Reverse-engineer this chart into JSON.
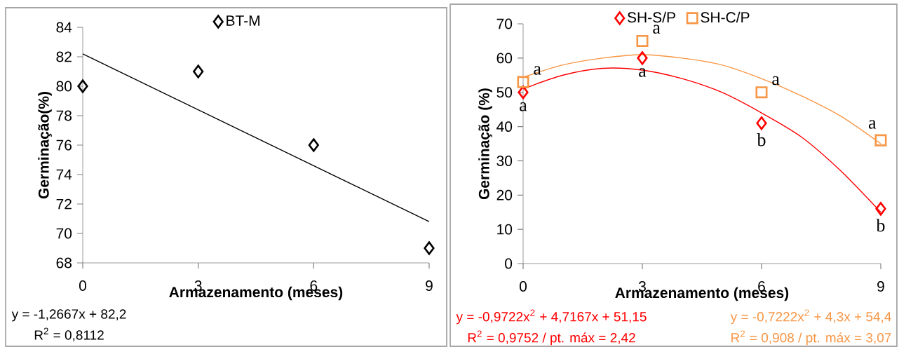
{
  "chart_data": [
    {
      "type": "scatter",
      "xlabel": "Armazenamento (meses)",
      "ylabel": "Germinação(%)",
      "xlim": [
        0,
        9
      ],
      "xticks": [
        0,
        3,
        6,
        9
      ],
      "ylim": [
        68,
        84
      ],
      "yticks": [
        68,
        70,
        72,
        74,
        76,
        78,
        80,
        82,
        84
      ],
      "legend": "top",
      "x": [
        0,
        3,
        6,
        9
      ],
      "series": [
        {
          "name": "BT-M",
          "color": "#000000",
          "marker": "diamond",
          "values": [
            80,
            81,
            76,
            69
          ]
        },
        {
          "type": "line",
          "color": "#000000",
          "marker": "none",
          "x": [
            0,
            9
          ],
          "values": [
            82.2,
            70.8
          ]
        }
      ],
      "annotations": [
        "y = -1,2667x + 82,2",
        "R$^{2}$ = 0,8112"
      ]
    },
    {
      "type": "scatter",
      "xlabel": "Armazenamento (meses)",
      "ylabel": "Germinação (%)",
      "xlim": [
        0,
        9
      ],
      "xticks": [
        0,
        3,
        6,
        9
      ],
      "ylim": [
        0,
        70
      ],
      "yticks": [
        0,
        10,
        20,
        30,
        40,
        50,
        60,
        70
      ],
      "legend": "top",
      "x": [
        0,
        3,
        6,
        9
      ],
      "series": [
        {
          "name": "SH-S/P",
          "color": "#ff0000",
          "marker": "diamond",
          "values": [
            50,
            60,
            41,
            16
          ]
        },
        {
          "name": "SH-C/P",
          "color": "#f79646",
          "marker": "square",
          "values": [
            53,
            65,
            50,
            36
          ]
        },
        {
          "type": "line",
          "color": "#ff0000",
          "marker": "none",
          "x": [
            0,
            1,
            2,
            3,
            4,
            5,
            6,
            7,
            8,
            9
          ],
          "values": [
            51,
            55,
            57,
            56.5,
            54,
            50,
            44,
            37,
            27,
            15
          ]
        },
        {
          "type": "line",
          "color": "#f79646",
          "marker": "none",
          "x": [
            0,
            1,
            2,
            3,
            4,
            5,
            6,
            7,
            8,
            9
          ],
          "values": [
            54.4,
            58,
            60,
            61,
            60,
            58,
            54,
            49,
            43,
            35
          ]
        }
      ],
      "annotations": [
        "y = -0,9722x$^{2}$ + 4,7167x + 51,15",
        "R$^{2}$ = 0,9752 / pt. máx = 2,42",
        "y = -0,7222x$^{2}$ + 4,3x + 54,4",
        "R$^{2}$ = 0,908 / pt. máx = 3,07",
        {
          "text": "a",
          "x": 0,
          "y": 53
        },
        {
          "text": "a",
          "x": 0,
          "y": 50
        },
        {
          "text": "a",
          "x": 3,
          "y": 65
        },
        {
          "text": "a",
          "x": 3,
          "y": 60
        },
        {
          "text": "a",
          "x": 6,
          "y": 50
        },
        {
          "text": "b",
          "x": 6,
          "y": 41
        },
        {
          "text": "a",
          "x": 9,
          "y": 36
        },
        {
          "text": "b",
          "x": 9,
          "y": 16
        }
      ]
    }
  ]
}
